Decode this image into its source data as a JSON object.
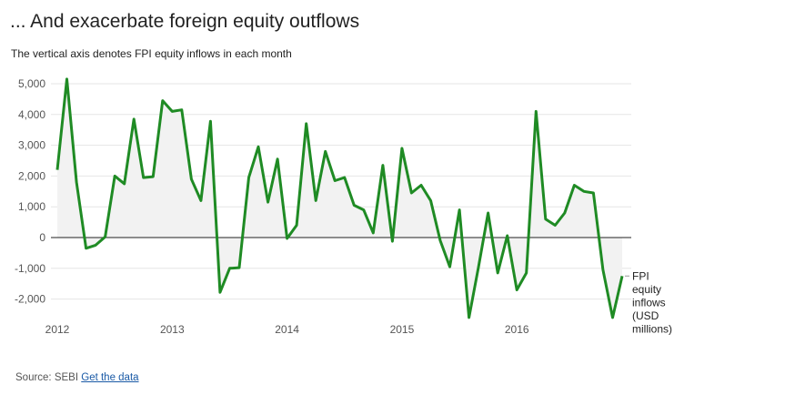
{
  "header": {
    "title": "... And exacerbate foreign equity outflows",
    "subtitle": "The vertical axis denotes FPI equity inflows in each month"
  },
  "footer": {
    "source_label": "Source: SEBI",
    "link_label": "Get the data"
  },
  "chart_data": {
    "type": "area",
    "title": "... And exacerbate foreign equity outflows",
    "subtitle": "The vertical axis denotes FPI equity inflows in each month",
    "xlabel": "",
    "ylabel": "",
    "ylim": [
      -2600,
      5100
    ],
    "yticks": [
      -2000,
      -1000,
      0,
      1000,
      2000,
      3000,
      4000,
      5000
    ],
    "ytick_labels": [
      "-2,000",
      "-1,000",
      "0",
      "1,000",
      "2,000",
      "3,000",
      "4,000",
      "5,000"
    ],
    "xticks": [
      "2012",
      "2013",
      "2014",
      "2015",
      "2016"
    ],
    "grid": "horizontal",
    "colors": {
      "line": "#1f8b24",
      "area": "#f2f2f2",
      "grid": "#e6e6e6",
      "zero": "#222222"
    },
    "series": [
      {
        "name": "FPI equity inflows (USD millions)",
        "start": "2012-01",
        "values": [
          2200,
          5150,
          1800,
          -350,
          -250,
          20,
          2000,
          1750,
          3850,
          1950,
          1980,
          4450,
          4100,
          4150,
          1900,
          1200,
          3780,
          -1780,
          -1000,
          -980,
          1950,
          2950,
          1150,
          2550,
          -30,
          400,
          3700,
          1200,
          2800,
          1850,
          1950,
          1050,
          900,
          150,
          2350,
          -120,
          2900,
          1450,
          1700,
          1200,
          -100,
          -950,
          900,
          -2600,
          -950,
          800,
          -1150,
          60,
          -1700,
          -1150,
          4100,
          600,
          400,
          800,
          1700,
          1500,
          1450,
          -1050,
          -2600,
          -1250
        ]
      }
    ]
  }
}
